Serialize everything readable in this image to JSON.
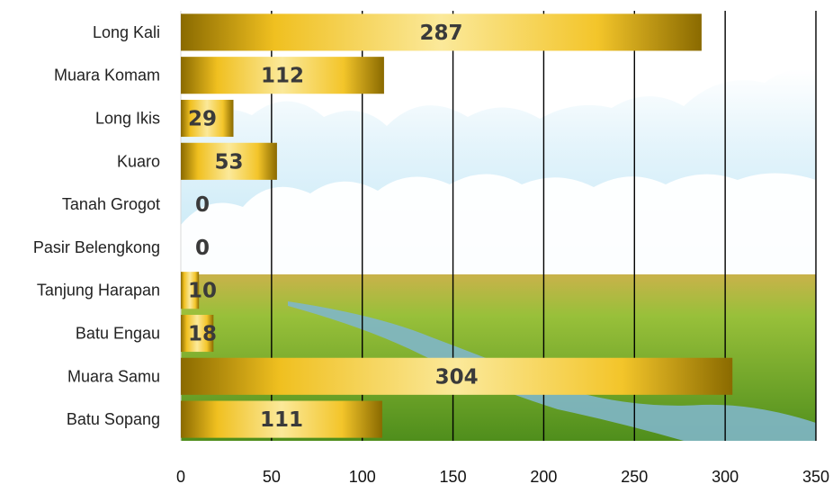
{
  "chart_data": {
    "type": "bar",
    "orientation": "horizontal",
    "categories": [
      "Long Kali",
      "Muara Komam",
      "Long Ikis",
      "Kuaro",
      "Tanah Grogot",
      "Pasir Belengkong",
      "Tanjung Harapan",
      "Batu Engau",
      "Muara Samu",
      "Batu Sopang"
    ],
    "values": [
      287,
      112,
      29,
      53,
      0,
      0,
      10,
      18,
      304,
      111
    ],
    "data_labels": [
      "287",
      "112",
      "29",
      "53",
      "0",
      "0",
      "10",
      "18",
      "304",
      "111"
    ],
    "xlim": [
      0,
      350
    ],
    "x_ticks": [
      "0",
      "50",
      "100",
      "150",
      "200",
      "250",
      "300",
      "350"
    ],
    "title": "",
    "xlabel": "",
    "ylabel": "",
    "grid": "vertical",
    "legend": "none",
    "background": "cartoon sky with clouds over green rice field and stream",
    "colors": {
      "bar_dark": "#8a6a00",
      "bar_mid": "#f3c52a",
      "bar_light": "#fbe99a",
      "gridline": "#000000",
      "label_text": "#3a3a3a",
      "sky": "#bfe6f5",
      "cloud": "#ffffff",
      "field": "#7fbf2e",
      "stream": "#7fb6c8"
    }
  }
}
